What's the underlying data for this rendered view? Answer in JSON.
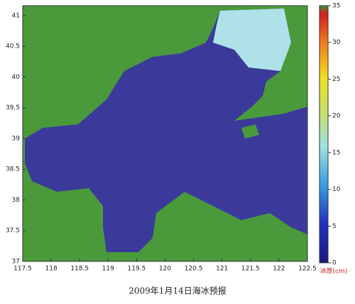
{
  "map": {
    "xlim": [
      117.5,
      122.5
    ],
    "ylim": [
      37,
      41.16
    ],
    "xticks": [
      117.5,
      118,
      118.5,
      119,
      119.5,
      120,
      120.5,
      121,
      121.5,
      122,
      122.5
    ],
    "yticks": [
      37,
      37.5,
      38,
      38.5,
      39,
      39.5,
      40,
      40.5,
      41
    ],
    "colorbar": {
      "lim": [
        0,
        35
      ],
      "ticks": [
        0,
        5,
        10,
        15,
        20,
        25,
        30,
        35
      ],
      "label": "冰厚(cm)"
    },
    "caption": "2009年1月14日海冰预报"
  }
}
